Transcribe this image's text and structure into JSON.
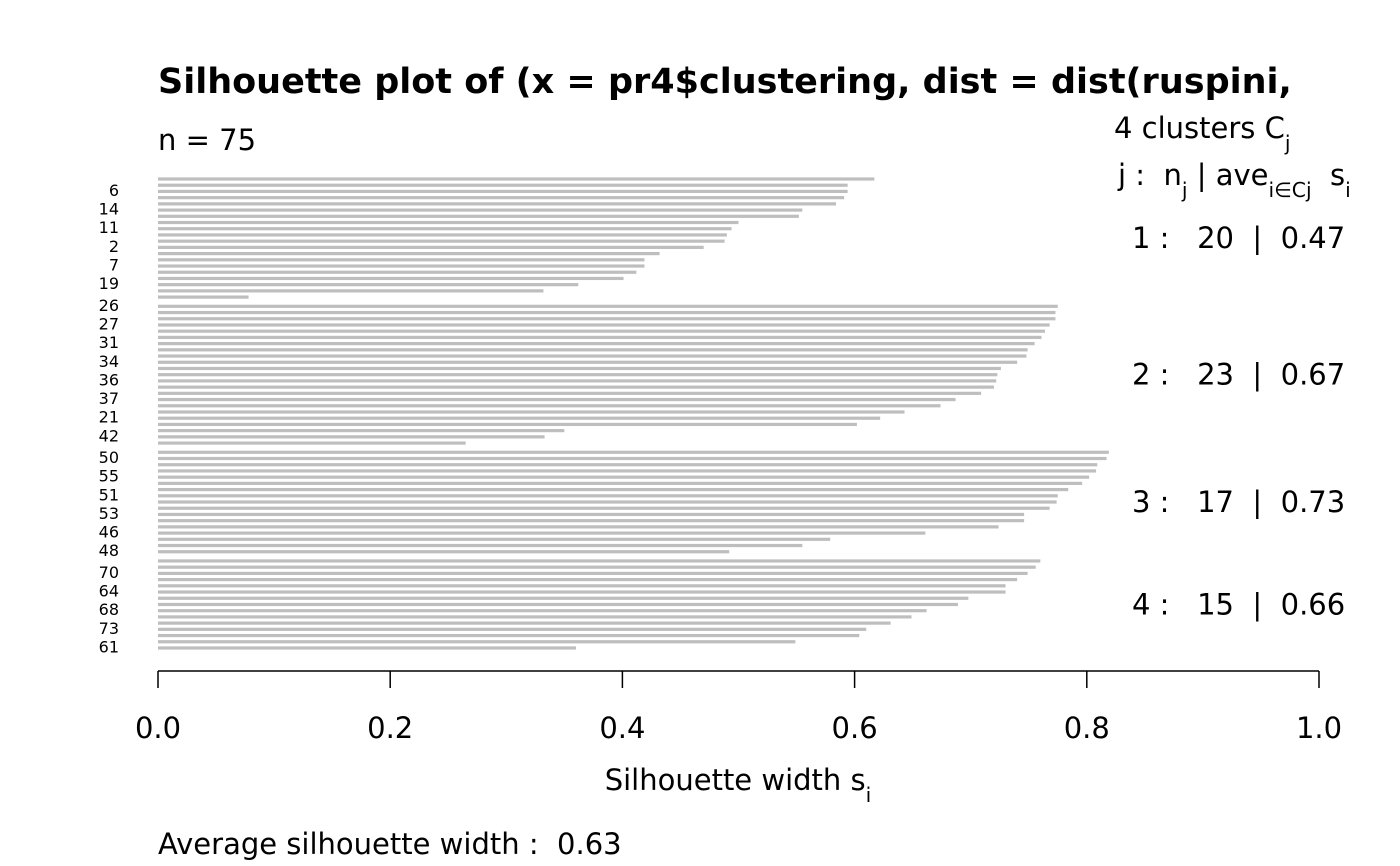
{
  "chart_data": {
    "type": "silhouette",
    "title": "Silhouette plot of (x = pr4$clustering, dist = dist(ruspini,",
    "subtitle": "n = 75",
    "legend_title": [
      {
        "t": "4 clusters C",
        "sub": false
      },
      {
        "t": "j",
        "sub": true
      }
    ],
    "legend_header": [
      {
        "t": "j :  n",
        "sub": false
      },
      {
        "t": "j",
        "sub": true
      },
      {
        "t": " | ave",
        "sub": false
      },
      {
        "t": "i∈Cj",
        "sub": true
      },
      {
        "t": "  s",
        "sub": false
      },
      {
        "t": "i",
        "sub": true
      }
    ],
    "x_label": [
      {
        "t": "Silhouette width s",
        "sub": false
      },
      {
        "t": "i",
        "sub": true
      }
    ],
    "footer": "Average silhouette width :  0.63",
    "color": "#bebebe",
    "xlim": [
      0,
      1
    ],
    "xticks": [
      {
        "value": 0,
        "label": "0.0"
      },
      {
        "value": 0.2,
        "label": "0.2"
      },
      {
        "value": 0.4,
        "label": "0.4"
      },
      {
        "value": 0.6,
        "label": "0.6"
      },
      {
        "value": 0.8,
        "label": "0.8"
      },
      {
        "value": 1,
        "label": "1.0"
      }
    ],
    "clusters": [
      {
        "summary": "1 :   20  |  0.47",
        "categories": [
          null,
          null,
          "6",
          null,
          null,
          "14",
          null,
          null,
          "11",
          null,
          null,
          "2",
          null,
          null,
          "7",
          null,
          null,
          "19",
          null,
          null
        ],
        "values": [
          0.617,
          0.594,
          0.594,
          0.591,
          0.584,
          0.555,
          0.552,
          0.5,
          0.494,
          0.49,
          0.488,
          0.47,
          0.432,
          0.419,
          0.419,
          0.412,
          0.401,
          0.362,
          0.332,
          0.078
        ]
      },
      {
        "summary": "2 :   23  |  0.67",
        "categories": [
          "26",
          null,
          null,
          "27",
          null,
          null,
          "31",
          null,
          null,
          "34",
          null,
          null,
          "36",
          null,
          null,
          "37",
          null,
          null,
          "21",
          null,
          null,
          "42",
          null
        ],
        "values": [
          0.775,
          0.773,
          0.773,
          0.768,
          0.764,
          0.761,
          0.755,
          0.749,
          0.748,
          0.74,
          0.726,
          0.723,
          0.722,
          0.72,
          0.709,
          0.687,
          0.674,
          0.643,
          0.622,
          0.602,
          0.35,
          0.333,
          0.265
        ]
      },
      {
        "summary": "3 :   17  |  0.73",
        "categories": [
          null,
          "50",
          null,
          null,
          "55",
          null,
          null,
          "51",
          null,
          null,
          "53",
          null,
          null,
          "46",
          null,
          null,
          "48"
        ],
        "values": [
          0.819,
          0.817,
          0.809,
          0.808,
          0.802,
          0.796,
          0.784,
          0.775,
          0.774,
          0.768,
          0.746,
          0.746,
          0.724,
          0.661,
          0.579,
          0.555,
          0.492
        ]
      },
      {
        "summary": "4 :   15  |  0.66",
        "categories": [
          null,
          null,
          "70",
          null,
          null,
          "64",
          null,
          null,
          "68",
          null,
          null,
          "73",
          null,
          null,
          "61"
        ],
        "values": [
          0.76,
          0.756,
          0.749,
          0.74,
          0.73,
          0.73,
          0.698,
          0.689,
          0.662,
          0.649,
          0.631,
          0.61,
          0.604,
          0.549,
          0.36
        ]
      }
    ]
  }
}
